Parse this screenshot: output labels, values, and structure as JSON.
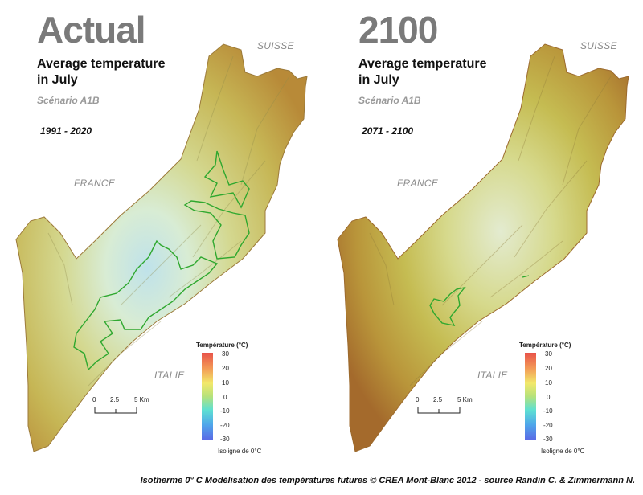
{
  "caption": "Isotherme 0° C Modélisation des températures futures © CREA Mont-Blanc 2012 - source Randin C. & Zimmermann N.",
  "panels": [
    {
      "big_title": "Actual",
      "subtitle_line1": "Average temperature",
      "subtitle_line2": "in July",
      "scenario": "Scénario A1B",
      "period": "1991 - 2020",
      "labels": {
        "suisse": "SUISSE",
        "france": "FRANCE",
        "italie": "ITALIE"
      }
    },
    {
      "big_title": "2100",
      "subtitle_line1": "Average temperature",
      "subtitle_line2": "in July",
      "scenario": "Scénario A1B",
      "period": "2071 - 2100",
      "labels": {
        "suisse": "SUISSE",
        "france": "FRANCE",
        "italie": "ITALIE"
      }
    }
  ],
  "legend": {
    "title": "Température (°C)",
    "ticks": [
      "30",
      "20",
      "10",
      "0",
      "-10",
      "-20",
      "-30"
    ],
    "isoline_label": "Isoligne de 0°C",
    "colors": [
      "#e8534a",
      "#f39a56",
      "#f2e86a",
      "#b7e27a",
      "#5ee0d2",
      "#4fa6ea",
      "#5a6be6"
    ]
  },
  "scale": {
    "ticks": [
      "0",
      "2.5",
      "5 Km"
    ]
  },
  "colors": {
    "isoline": "#2fa82f",
    "title_gray": "#7a7a7a"
  }
}
